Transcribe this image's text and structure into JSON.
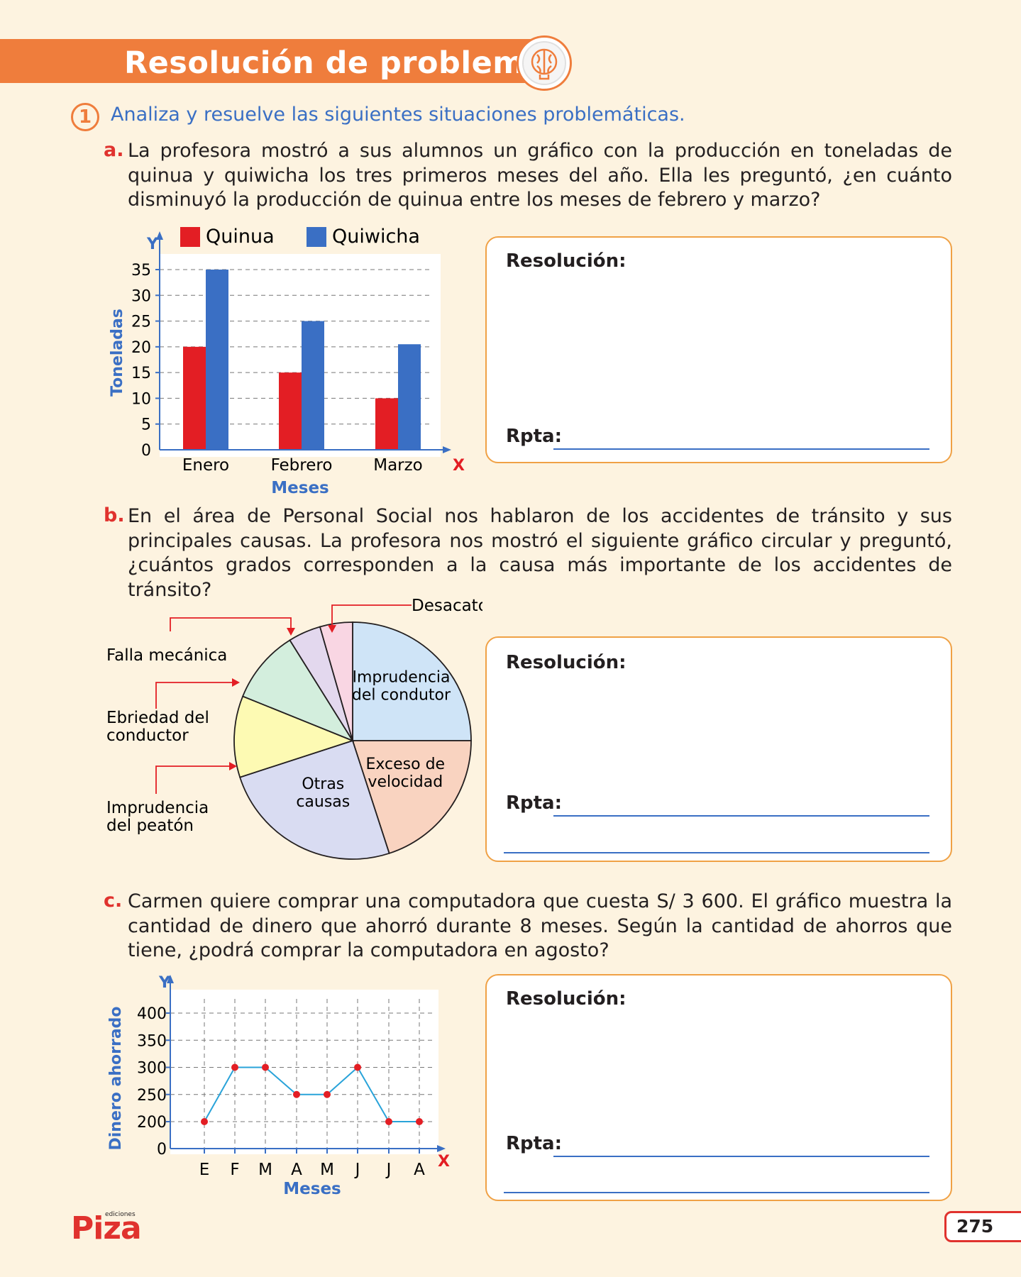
{
  "header": {
    "title": "Resolución de problemas",
    "icon": "brain-gear-icon",
    "accent": "#ef7d3c"
  },
  "activity": {
    "number": "1",
    "instruction": "Analiza y resuelve las siguientes situaciones problemáticas."
  },
  "questions": [
    {
      "letter": "a.",
      "text": "La profesora mostró a sus alumnos un gráfico con la producción en toneladas de quinua y quiwicha los tres primeros meses del año. Ella les preguntó, ¿en cuánto disminuyó la producción de quinua entre los meses de febrero y marzo?",
      "resolution_label": "Resolución:",
      "answer_label": "Rpta:"
    },
    {
      "letter": "b.",
      "text": "En el área de Personal Social nos hablaron de los accidentes de tránsito y sus principales causas. La profesora nos mostró el siguiente gráfico circular y preguntó, ¿cuántos grados corresponden a la causa más importante de los accidentes de tránsito?",
      "resolution_label": "Resolución:",
      "answer_label": "Rpta:"
    },
    {
      "letter": "c.",
      "text": "Carmen quiere comprar una computadora que cuesta S/ 3 600. El gráfico muestra la cantidad de dinero que ahorró durante 8 meses. Según la cantidad de ahorros que tiene, ¿podrá comprar la computadora en agosto?",
      "resolution_label": "Resolución:",
      "answer_label": "Rpta:"
    }
  ],
  "chart_data": [
    {
      "type": "bar",
      "categories": [
        "Enero",
        "Febrero",
        "Marzo"
      ],
      "series": [
        {
          "name": "Quinua",
          "values": [
            20,
            15,
            10
          ],
          "color": "#e31e24"
        },
        {
          "name": "Quiwicha",
          "values": [
            35,
            25,
            20.5
          ],
          "color": "#3a6fc4"
        }
      ],
      "xlabel": "Meses",
      "ylabel": "Toneladas",
      "x_axis_letter": "X",
      "y_axis_letter": "Y",
      "yticks": [
        0,
        5,
        10,
        15,
        20,
        25,
        30,
        35
      ],
      "ylim": [
        0,
        35
      ],
      "grid": "dashed horizontal",
      "legend": "top"
    },
    {
      "type": "pie",
      "slices": [
        {
          "label": "Imprudencia del condutor",
          "label_lines": [
            "Imprudencia",
            "del condutor"
          ],
          "degrees": 90,
          "color": "#cfe4f7"
        },
        {
          "label": "Exceso de velocidad",
          "label_lines": [
            "Exceso de",
            "velocidad"
          ],
          "degrees": 72,
          "color": "#f9d3c0"
        },
        {
          "label": "Otras causas",
          "label_lines": [
            "Otras",
            "causas"
          ],
          "degrees": 90,
          "color": "#d9dcf2"
        },
        {
          "label": "Imprudencia del peatón",
          "label_lines": [
            "Imprudencia",
            "del peatón"
          ],
          "degrees": 40,
          "color": "#fdfab3"
        },
        {
          "label": "Ebriedad del conductor",
          "label_lines": [
            "Ebriedad del",
            "conductor"
          ],
          "degrees": 36,
          "color": "#d3eedd"
        },
        {
          "label": "Falla mecánica",
          "label_lines": [
            "Falla mecánica"
          ],
          "degrees": 16,
          "color": "#e3d8ee"
        },
        {
          "label": "Desacato a las señales",
          "label_lines": [
            "Desacato a las señales"
          ],
          "degrees": 16,
          "color": "#f9d6e3"
        }
      ]
    },
    {
      "type": "line",
      "x": [
        "E",
        "F",
        "M",
        "A",
        "M",
        "J",
        "J",
        "A"
      ],
      "series": [
        {
          "values": [
            200,
            300,
            300,
            250,
            250,
            300,
            200,
            200
          ],
          "color": "#29a3d9",
          "marker_color": "#e31e24"
        }
      ],
      "xlabel": "Meses",
      "ylabel": "Dinero ahorrado",
      "x_axis_letter": "X",
      "y_axis_letter": "Y",
      "yticks": [
        0,
        200,
        250,
        300,
        350,
        400
      ],
      "grid": "dashed"
    }
  ],
  "footer": {
    "logo": "Piza",
    "logo_small": "ediciones",
    "page_number": "275"
  }
}
